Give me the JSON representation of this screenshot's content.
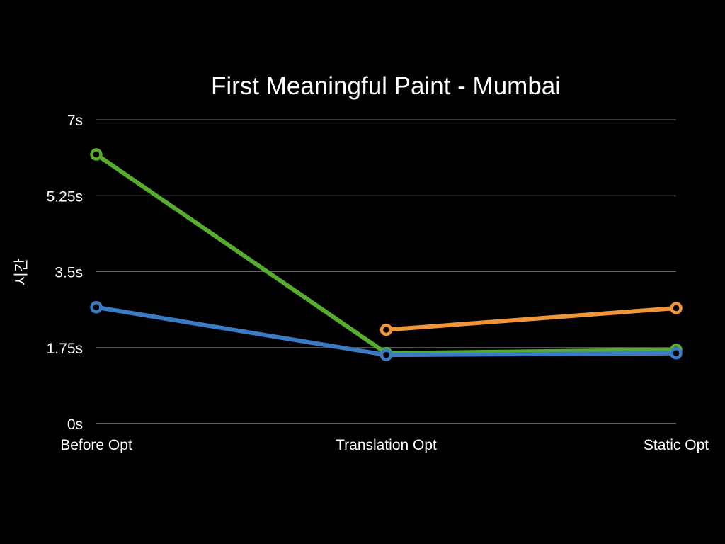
{
  "chart_data": {
    "type": "line",
    "title": "First Meaningful Paint - Mumbai",
    "xlabel": "",
    "ylabel": "시간",
    "categories": [
      "Before Opt",
      "Translation Opt",
      "Static Opt"
    ],
    "ylim": [
      0,
      7
    ],
    "yticks": [
      0,
      1.75,
      3.5,
      5.25,
      7
    ],
    "ytick_labels": [
      "0s",
      "1.75s",
      "3.5s",
      "5.25s",
      "7s"
    ],
    "grid": true,
    "legend": "none",
    "series": [
      {
        "color": "#f0963a",
        "values": [
          null,
          2.16,
          2.66
        ]
      },
      {
        "color": "#56ac2f",
        "values": [
          6.2,
          1.62,
          1.7
        ]
      },
      {
        "color": "#3a7cc4",
        "values": [
          2.68,
          1.58,
          1.62
        ]
      }
    ]
  }
}
